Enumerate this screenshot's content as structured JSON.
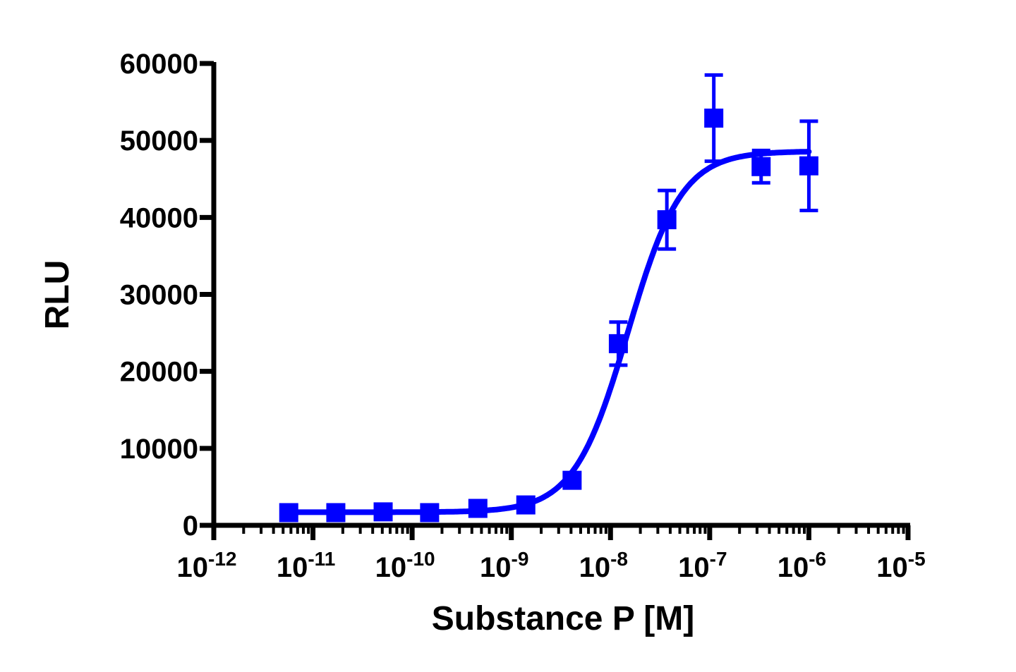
{
  "chart_data": {
    "type": "scatter",
    "title": "",
    "xlabel": "Substance P [M]",
    "ylabel": "RLU",
    "x_scale": "log10",
    "xlim": [
      1e-12,
      1e-05
    ],
    "ylim": [
      0,
      60000
    ],
    "grid": false,
    "legend": null,
    "x_tick_labels": [
      {
        "base": "10",
        "exp": "-12"
      },
      {
        "base": "10",
        "exp": "-11"
      },
      {
        "base": "10",
        "exp": "-10"
      },
      {
        "base": "10",
        "exp": "-9"
      },
      {
        "base": "10",
        "exp": "-8"
      },
      {
        "base": "10",
        "exp": "-7"
      },
      {
        "base": "10",
        "exp": "-6"
      },
      {
        "base": "10",
        "exp": "-5"
      }
    ],
    "y_ticks": [
      0,
      10000,
      20000,
      30000,
      40000,
      50000,
      60000
    ],
    "y_tick_labels": [
      "0",
      "10000",
      "20000",
      "30000",
      "40000",
      "50000",
      "60000"
    ],
    "series": [
      {
        "name": "Substance P",
        "color": "#0000ff",
        "marker": "square",
        "x": [
          5.7e-12,
          1.7e-11,
          5.1e-11,
          1.5e-10,
          4.6e-10,
          1.4e-09,
          4.1e-09,
          1.2e-08,
          3.7e-08,
          1.1e-07,
          3.3e-07,
          1e-06
        ],
        "y": [
          1650,
          1650,
          1750,
          1650,
          2200,
          2650,
          5850,
          23600,
          39700,
          52900,
          46600,
          46700
        ],
        "error": [
          0,
          0,
          0,
          0,
          0,
          0,
          0,
          2800,
          3800,
          5600,
          2100,
          5800
        ]
      }
    ],
    "fit": {
      "type": "4PL sigmoidal dose-response",
      "bottom": 1700,
      "top": 48600,
      "ec50": 1.5e-08,
      "hill": 1.6,
      "color": "#0000ff"
    }
  }
}
